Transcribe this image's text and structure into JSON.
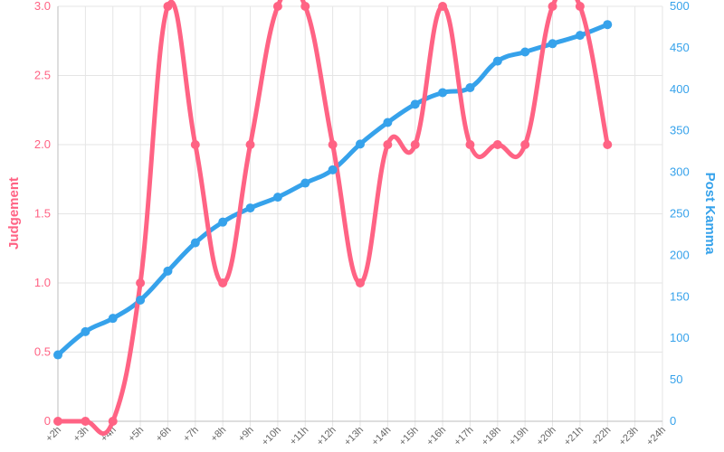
{
  "chart_data": {
    "type": "line",
    "x": [
      "+2h",
      "+3h",
      "+4h",
      "+5h",
      "+6h",
      "+7h",
      "+8h",
      "+9h",
      "+10h",
      "+11h",
      "+12h",
      "+13h",
      "+14h",
      "+15h",
      "+16h",
      "+17h",
      "+18h",
      "+19h",
      "+20h",
      "+21h",
      "+22h",
      "+23h",
      "+24h"
    ],
    "series": [
      {
        "name": "",
        "axis": "left",
        "color": "#ff6384",
        "values": [
          0,
          0,
          0,
          1,
          3,
          2,
          1,
          2,
          3,
          3,
          2,
          1,
          2,
          2,
          3,
          2,
          2,
          2,
          3,
          3,
          2,
          null,
          null
        ]
      },
      {
        "name": "",
        "axis": "right",
        "color": "#36a2eb",
        "values": [
          80,
          108,
          124,
          146,
          181,
          215,
          240,
          257,
          270,
          287,
          303,
          334,
          360,
          382,
          396,
          402,
          434,
          445,
          455,
          465,
          478,
          null,
          null
        ]
      }
    ],
    "y_left": {
      "label": "Judgement",
      "color": "#ff6384",
      "ylim": [
        0,
        3
      ],
      "ticks": [
        "0",
        "0.5",
        "1.0",
        "1.5",
        "2.0",
        "2.5",
        "3.0"
      ]
    },
    "y_right": {
      "label": "Post Kamma",
      "color": "#36a2eb",
      "ylim": [
        0,
        500
      ],
      "ticks": [
        "0",
        "50",
        "100",
        "150",
        "200",
        "250",
        "300",
        "350",
        "400",
        "450",
        "500"
      ]
    },
    "grid": true,
    "legend": "none"
  }
}
